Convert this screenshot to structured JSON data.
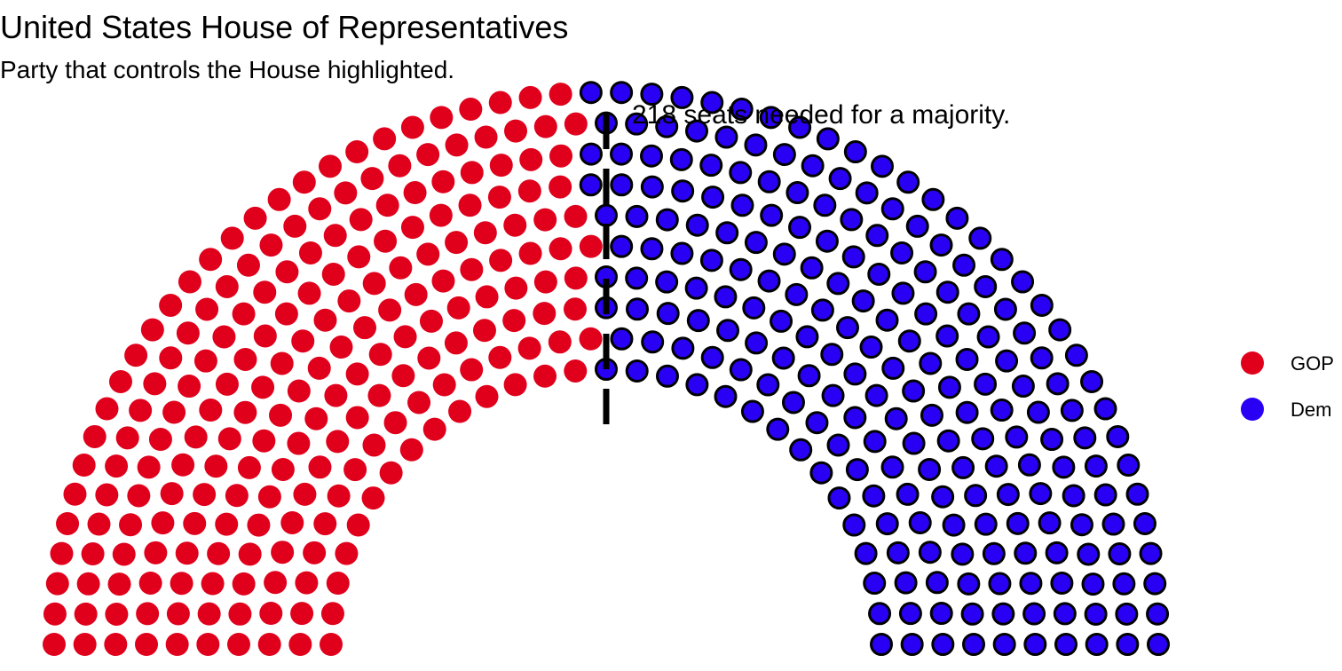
{
  "chart_data": {
    "type": "parliament",
    "title": "United States House of Representatives",
    "subtitle": "Party that controls the House highlighted.",
    "total_seats": 435,
    "majority_threshold": 218,
    "annotation": "218 seats needed for a majority.",
    "rows": 10,
    "highlighted_party": "Dem",
    "series": [
      {
        "name": "GOP",
        "values": [
          212
        ],
        "color": "#e0001b"
      },
      {
        "name": "Dem",
        "values": [
          223
        ],
        "color": "#2a00f5"
      }
    ],
    "legend": {
      "placement": "right",
      "entries": [
        "GOP",
        "Dem"
      ]
    },
    "grid": false
  }
}
